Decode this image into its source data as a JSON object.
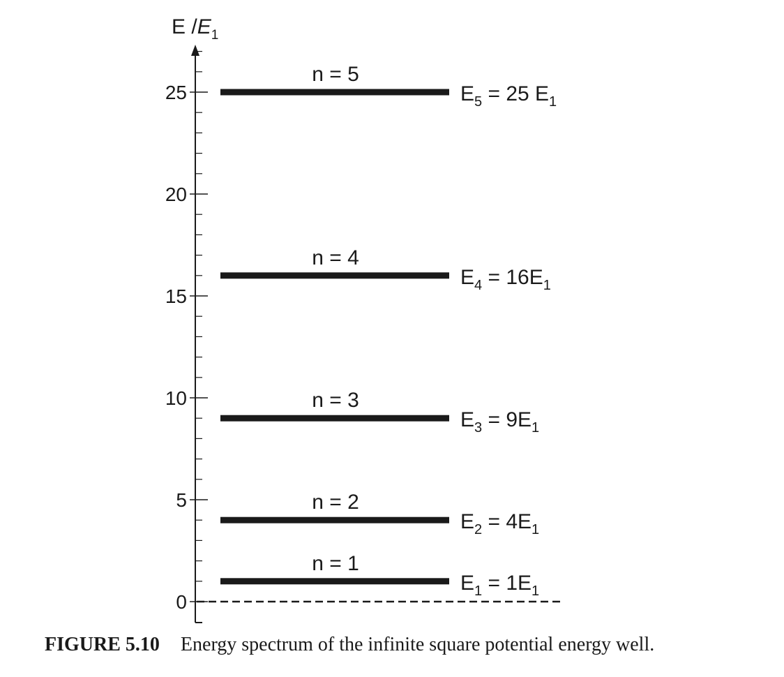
{
  "chart_data": {
    "type": "energy-level-diagram",
    "y_axis": {
      "title_main": "E /",
      "title_sub_base": "E",
      "title_sub": "1",
      "range": [
        0,
        27
      ],
      "major_ticks": [
        0,
        5,
        10,
        15,
        20,
        25
      ],
      "minor_tick_step": 1
    },
    "baseline": {
      "value": 0,
      "style": "dashed"
    },
    "levels": [
      {
        "n": 1,
        "value": 1,
        "label": "n = 1",
        "energy_base": "E",
        "energy_sub": "1",
        "energy_rhs": " = 1E",
        "energy_rhs_sub": "1"
      },
      {
        "n": 2,
        "value": 4,
        "label": "n = 2",
        "energy_base": "E",
        "energy_sub": "2",
        "energy_rhs": " = 4E",
        "energy_rhs_sub": "1"
      },
      {
        "n": 3,
        "value": 9,
        "label": "n = 3",
        "energy_base": "E",
        "energy_sub": "3",
        "energy_rhs": " = 9E",
        "energy_rhs_sub": "1"
      },
      {
        "n": 4,
        "value": 16,
        "label": "n = 4",
        "energy_base": "E",
        "energy_sub": "4",
        "energy_rhs": " = 16E",
        "energy_rhs_sub": "1"
      },
      {
        "n": 5,
        "value": 25,
        "label": "n = 5",
        "energy_base": "E",
        "energy_sub": "5",
        "energy_rhs": " = 25 E",
        "energy_rhs_sub": "1"
      }
    ]
  },
  "caption": {
    "figure_number": "FIGURE 5.10",
    "text": "Energy spectrum of the infinite square potential energy well."
  }
}
